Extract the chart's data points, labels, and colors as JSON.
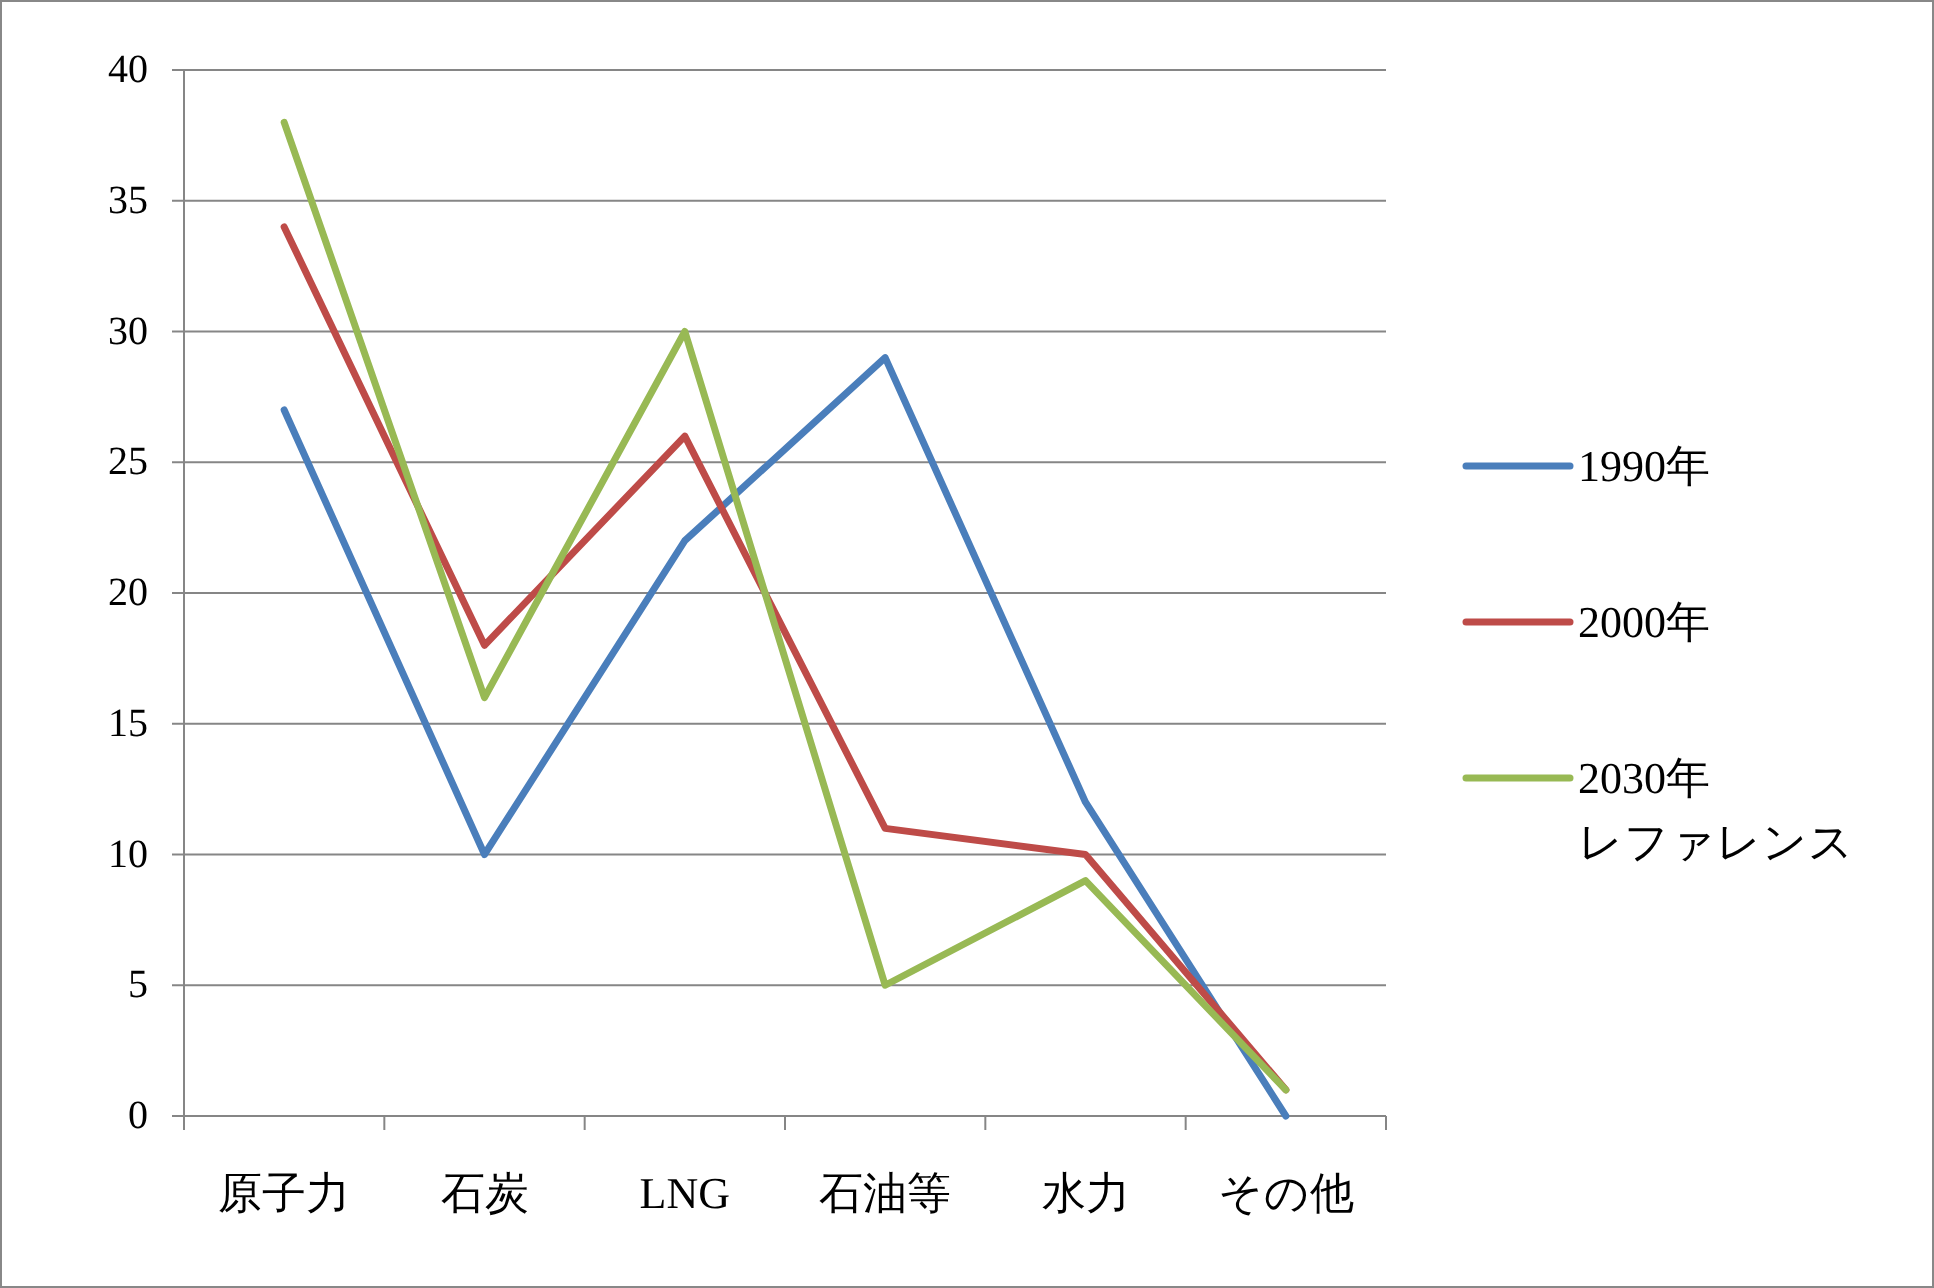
{
  "chart_data": {
    "type": "line",
    "categories": [
      "原子力",
      "石炭",
      "LNG",
      "石油等",
      "水力",
      "その他"
    ],
    "series": [
      {
        "name": "1990年",
        "color": "#4a7ebb",
        "values": [
          27,
          10,
          22,
          29,
          12,
          0
        ]
      },
      {
        "name": "2000年",
        "color": "#be4b48",
        "values": [
          34,
          18,
          26,
          11,
          10,
          1
        ]
      },
      {
        "name": "2030年レファレンス",
        "color": "#98b954",
        "values": [
          38,
          16,
          30,
          5,
          9,
          1
        ]
      }
    ],
    "ylim": [
      0,
      40
    ],
    "yticks": [
      0,
      5,
      10,
      15,
      20,
      25,
      30,
      35,
      40
    ],
    "grid": "y",
    "legend": "right",
    "marker": "none",
    "line_style": "solid"
  }
}
